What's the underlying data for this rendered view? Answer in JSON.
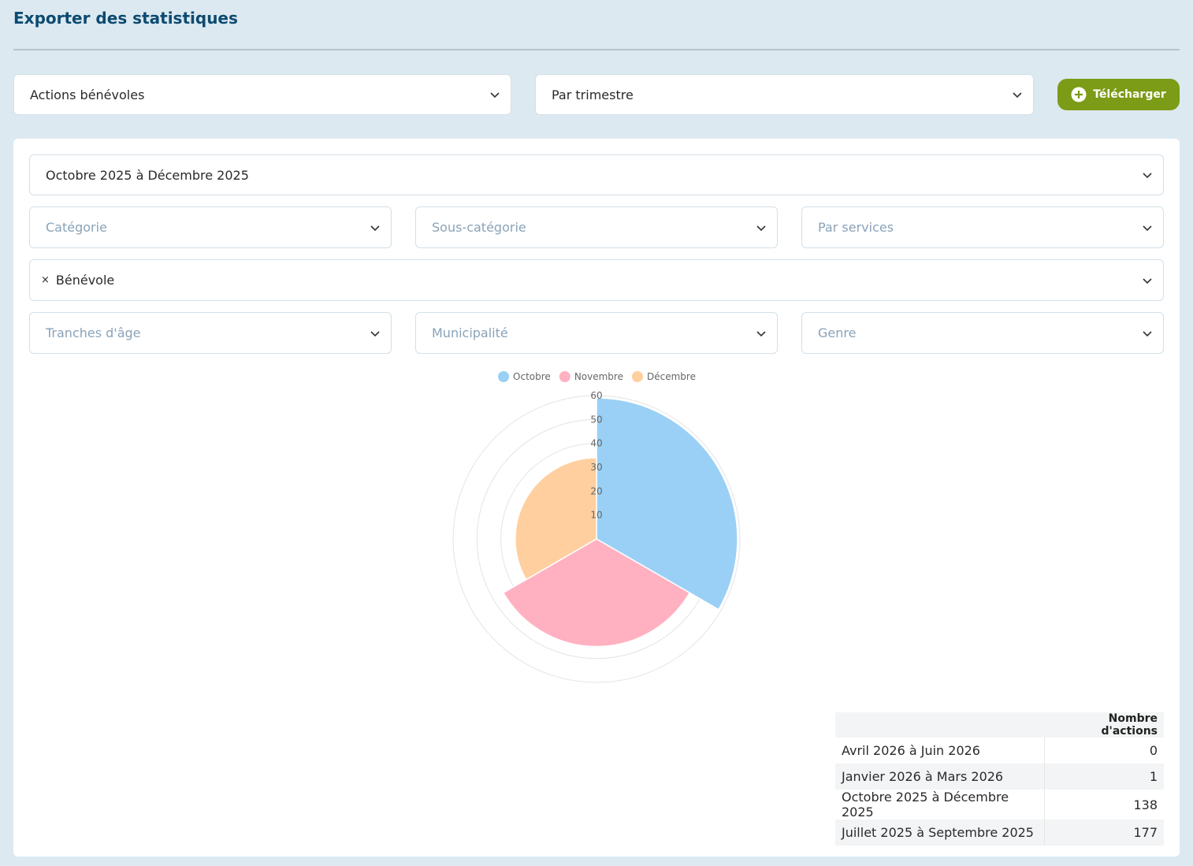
{
  "header": {
    "title": "Exporter des statistiques"
  },
  "toolbar": {
    "type_select": "Actions bénévoles",
    "period_select": "Par trimestre",
    "download_button": "Télécharger"
  },
  "filters": {
    "period": "Octobre 2025 à Décembre 2025",
    "category": "Catégorie",
    "subcategory": "Sous-catégorie",
    "services": "Par services",
    "role_tag_remove": "×",
    "role_tag": "Bénévole",
    "age": "Tranches d'âge",
    "municipality": "Municipalité",
    "gender": "Genre"
  },
  "chart_data": {
    "type": "polar",
    "categories": [
      "Octobre",
      "Novembre",
      "Décembre"
    ],
    "values": [
      59,
      45,
      34
    ],
    "colors": [
      "#9ad0f5",
      "#ffb1c1",
      "#ffcf9f"
    ],
    "ylim": [
      0,
      60
    ],
    "yticks": [
      10,
      20,
      30,
      40,
      50,
      60
    ],
    "grid": true,
    "legend": "top"
  },
  "table": {
    "header": [
      "",
      "Nombre d'actions"
    ],
    "rows": [
      [
        "Avril 2026 à Juin 2026",
        "0"
      ],
      [
        "Janvier 2026 à Mars 2026",
        "1"
      ],
      [
        "Octobre 2025 à Décembre 2025",
        "138"
      ],
      [
        "Juillet 2025 à Septembre 2025",
        "177"
      ]
    ]
  }
}
